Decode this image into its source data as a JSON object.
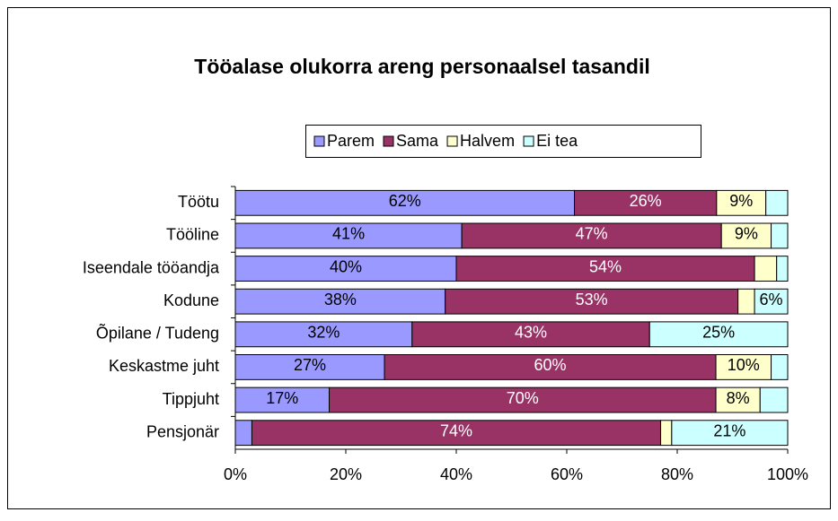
{
  "chart_data": {
    "type": "bar",
    "orientation": "horizontal",
    "stacked": "percent",
    "title": "Tööalase olukorra areng personaalsel tasandil",
    "categories": [
      "Töötu",
      "Tööline",
      "Iseendale tööandja",
      "Kodune",
      "Õpilane / Tudeng",
      "Keskastme juht",
      "Tippjuht",
      "Pensjonär"
    ],
    "series": [
      {
        "name": "Parem",
        "color": "#9999ff",
        "label_color": "#000000",
        "values": [
          62,
          41,
          40,
          38,
          32,
          27,
          17,
          3
        ],
        "value_labels": [
          "62%",
          "41%",
          "40%",
          "38%",
          "32%",
          "27%",
          "17%",
          null
        ]
      },
      {
        "name": "Sama",
        "color": "#993366",
        "label_color": "#ffffff",
        "values": [
          26,
          47,
          54,
          53,
          43,
          60,
          70,
          74
        ],
        "value_labels": [
          "26%",
          "47%",
          "54%",
          "53%",
          "43%",
          "60%",
          "70%",
          "74%"
        ]
      },
      {
        "name": "Halvem",
        "color": "#ffffcc",
        "label_color": "#000000",
        "values": [
          9,
          9,
          4,
          3,
          0,
          10,
          8,
          2
        ],
        "value_labels": [
          "9%",
          "9%",
          null,
          null,
          null,
          "10%",
          "8%",
          null
        ]
      },
      {
        "name": "Ei tea",
        "color": "#ccffff",
        "label_color": "#000000",
        "values": [
          4,
          3,
          2,
          6,
          25,
          3,
          5,
          21
        ],
        "value_labels": [
          null,
          null,
          null,
          "6%",
          "25%",
          null,
          null,
          "21%"
        ]
      }
    ],
    "xlim": [
      0,
      100
    ],
    "xticks": [
      {
        "value": 0,
        "label": "0%"
      },
      {
        "value": 20,
        "label": "20%"
      },
      {
        "value": 40,
        "label": "40%"
      },
      {
        "value": 60,
        "label": "60%"
      },
      {
        "value": 80,
        "label": "80%"
      },
      {
        "value": 100,
        "label": "100%"
      }
    ],
    "legend": "top"
  }
}
